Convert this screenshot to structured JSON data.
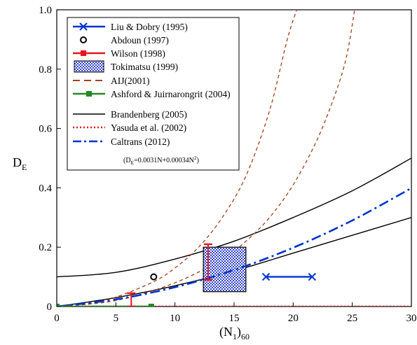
{
  "chart_data": {
    "type": "line",
    "xlabel": "(N1)60",
    "xlabel_main": "(N",
    "xlabel_sub1": "1",
    "xlabel_close": ")",
    "xlabel_sub2": "60",
    "ylabel": "DE",
    "ylabel_main": "D",
    "ylabel_sub": "E",
    "xlim": [
      0,
      30
    ],
    "ylim": [
      0,
      1.0
    ],
    "x_ticks": [
      0,
      5,
      10,
      15,
      20,
      25,
      30
    ],
    "x_tick_labels": [
      "0",
      "5",
      "10",
      "15",
      "20",
      "25",
      "30"
    ],
    "y_ticks": [
      0,
      0.2,
      0.4,
      0.6,
      0.8,
      1.0
    ],
    "y_tick_labels": [
      "0",
      "0.2",
      "0.4",
      "0.6",
      "0.8",
      "1.0"
    ],
    "grid": false,
    "legend_position": "top-left",
    "legend": [
      {
        "label": "Liu & Dobry (1995)",
        "style": "blue-x-line",
        "color": "#0033cc"
      },
      {
        "label": "Abdoun (1997)",
        "style": "open-circle",
        "color": "#000000"
      },
      {
        "label": "Wilson (1998)",
        "style": "red-errorbar",
        "color": "#e8151d"
      },
      {
        "label": "Tokimatsu (1999)",
        "style": "checker-box",
        "color": "#3344cc"
      },
      {
        "label": "AIJ(2001)",
        "style": "brown-long-dash",
        "color": "#a0401a"
      },
      {
        "label": "Ashford & Juirnarongrit (2004)",
        "style": "green-square-line",
        "color": "#228b22"
      },
      {
        "label": "Brandenberg (2005)",
        "style": "black-solid",
        "color": "#000000"
      },
      {
        "label": "Yasuda et al. (2002)",
        "style": "red-dotted",
        "color": "#e8151d"
      },
      {
        "label": "Caltrans (2012)",
        "style": "blue-dash-dot",
        "color": "#0033cc"
      }
    ],
    "caltrans_note": {
      "prefix": "(D",
      "sub": "E",
      "rest": "=0.0031N+0.00034N",
      "sup": "2",
      "close": ")"
    },
    "series": [
      {
        "name": "Liu & Dobry (1995)",
        "points": [
          [
            17.7,
            0.1
          ],
          [
            21.6,
            0.1
          ]
        ]
      },
      {
        "name": "Abdoun (1997)",
        "points": [
          [
            8.2,
            0.1
          ]
        ]
      },
      {
        "name": "Wilson (1998)",
        "errorbars": [
          {
            "x": 6.3,
            "low": 0.0,
            "high": 0.045
          },
          {
            "x": 12.8,
            "low": 0.09,
            "high": 0.21
          }
        ]
      },
      {
        "name": "Tokimatsu (1999)",
        "box": {
          "x": [
            12.4,
            16.0
          ],
          "y": [
            0.05,
            0.2
          ]
        }
      },
      {
        "name": "AIJ(2001)",
        "curves": [
          [
            [
              0,
              0.0
            ],
            [
              4,
              0.02
            ],
            [
              8,
              0.08
            ],
            [
              10,
              0.13
            ],
            [
              12,
              0.2
            ],
            [
              14,
              0.3
            ],
            [
              16,
              0.44
            ],
            [
              18,
              0.66
            ],
            [
              19.5,
              0.9
            ],
            [
              20.3,
              1.0
            ]
          ],
          [
            [
              0,
              0.0
            ],
            [
              5,
              0.02
            ],
            [
              10,
              0.08
            ],
            [
              14,
              0.16
            ],
            [
              16,
              0.22
            ],
            [
              18,
              0.3
            ],
            [
              20,
              0.41
            ],
            [
              22,
              0.56
            ],
            [
              23.5,
              0.71
            ],
            [
              24.5,
              0.84
            ],
            [
              25.2,
              1.0
            ]
          ]
        ]
      },
      {
        "name": "Ashford & Juirnarongrit (2004)",
        "points": [
          [
            0,
            0.0
          ],
          [
            8,
            0.0
          ]
        ]
      },
      {
        "name": "Brandenberg (2005)",
        "curves": [
          [
            [
              0,
              0.1
            ],
            [
              5,
              0.115
            ],
            [
              10,
              0.16
            ],
            [
              15,
              0.22
            ],
            [
              20,
              0.3
            ],
            [
              25,
              0.39
            ],
            [
              30,
              0.5
            ]
          ],
          [
            [
              0,
              0.0
            ],
            [
              5,
              0.03
            ],
            [
              10,
              0.07
            ],
            [
              15,
              0.12
            ],
            [
              20,
              0.18
            ],
            [
              25,
              0.24
            ],
            [
              30,
              0.3
            ]
          ]
        ]
      },
      {
        "name": "Yasuda et al. (2002)",
        "points": [
          [
            0,
            0.0
          ],
          [
            30,
            0.0
          ]
        ]
      },
      {
        "name": "Caltrans (2012)",
        "formula": {
          "a": 0.0031,
          "b": 0.00034
        },
        "points": [
          [
            0,
            0.0
          ],
          [
            5,
            0.024
          ],
          [
            10,
            0.065
          ],
          [
            15,
            0.123
          ],
          [
            20,
            0.198
          ],
          [
            25,
            0.29
          ],
          [
            30,
            0.399
          ]
        ]
      }
    ]
  }
}
